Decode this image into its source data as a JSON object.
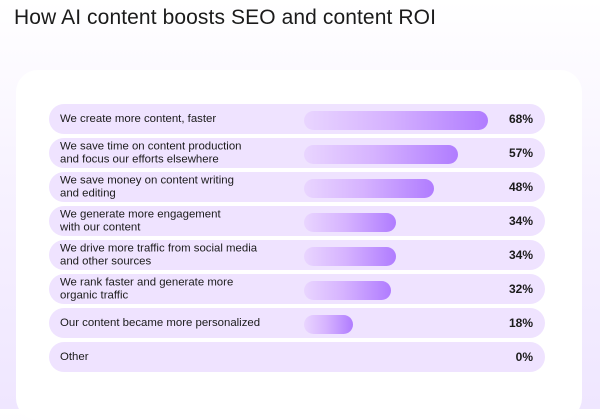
{
  "title": "How AI content boosts SEO and content ROI",
  "colors": {
    "row_bg": "#efe3ff",
    "bar_light": "#e9d5ff",
    "bar_dark": "#b07cff",
    "text": "#1b1b1b"
  },
  "chart_data": {
    "type": "bar",
    "orientation": "horizontal",
    "title": "How AI content boosts SEO and content ROI",
    "xlabel": "",
    "ylabel": "",
    "categories": [
      "We create more content, faster",
      "We save time on content production and focus our efforts elsewhere",
      "We save money on content writing and editing",
      "We generate more engagement with our content",
      "We drive more traffic from social media and other sources",
      "We rank faster and generate more organic traffic",
      "Our content became more personalized",
      "Other"
    ],
    "values": [
      68,
      57,
      48,
      34,
      34,
      32,
      18,
      0
    ],
    "value_labels": [
      "68%",
      "57%",
      "48%",
      "34%",
      "34%",
      "32%",
      "18%",
      "0%"
    ],
    "xlim": [
      0,
      68
    ],
    "grid": false
  }
}
